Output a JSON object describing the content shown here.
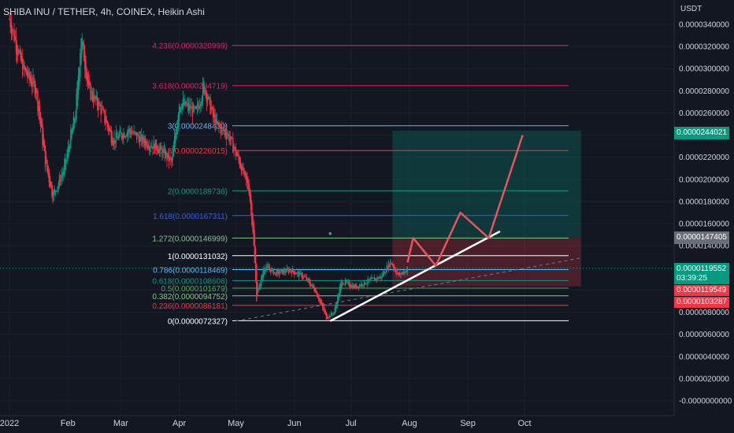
{
  "header": {
    "title": "SHIBA INU / TETHER, 4h, COINEX, Heikin Ashi"
  },
  "price_axis": {
    "unit": "USDT"
  },
  "price_tags": {
    "target": {
      "value": "0.0000244021",
      "color": "#089981"
    },
    "entry": {
      "value": "0.0000147405",
      "color": "#6b6e76"
    },
    "current": {
      "value": "0.0000119552",
      "countdown": "03:39:25",
      "color": "#089981"
    },
    "stop_1": {
      "value": "0.0000119549",
      "color": "#f23645"
    },
    "stop_2": {
      "value": "0.0000103287",
      "color": "#f23645"
    }
  },
  "chart_data": {
    "type": "candlestick",
    "symbol": "SHIBA INU / TETHER",
    "interval": "4h",
    "exchange": "COINEX",
    "style": "Heikin Ashi",
    "y_unit": "USDT",
    "ylim": [
      0.0,
      3.5e-05
    ],
    "y_ticks": [
      "0.0000340000",
      "0.0000320000",
      "0.0000300000",
      "0.0000280000",
      "0.0000260000",
      "0.0000240000",
      "0.0000220000",
      "0.0000200000",
      "0.0000180000",
      "0.0000160000",
      "0.0000140000",
      "0.0000120000",
      "0.0000100000",
      "0.0000080000",
      "0.0000060000",
      "0.0000040000",
      "0.0000020000",
      "-0.0000000000"
    ],
    "y_tick_values": [
      3.4e-05,
      3.2e-05,
      3e-05,
      2.8e-05,
      2.6e-05,
      2.4e-05,
      2.2e-05,
      2e-05,
      1.8e-05,
      1.6e-05,
      1.4e-05,
      1.2e-05,
      1e-05,
      8e-06,
      6e-06,
      4e-06,
      2e-06,
      0
    ],
    "x_ticks": [
      "2022",
      "Feb",
      "Mar",
      "Apr",
      "May",
      "Jun",
      "Jul",
      "Aug",
      "Sep",
      "Oct"
    ],
    "price_path": [
      [
        "2022-01-01",
        3.45e-05
      ],
      [
        "2022-01-08",
        3e-05
      ],
      [
        "2022-01-15",
        2.82e-05
      ],
      [
        "2022-01-20",
        2.15e-05
      ],
      [
        "2022-01-24",
        1.85e-05
      ],
      [
        "2022-01-30",
        2.1e-05
      ],
      [
        "2022-02-05",
        2.6e-05
      ],
      [
        "2022-02-08",
        3.3e-05
      ],
      [
        "2022-02-12",
        2.8e-05
      ],
      [
        "2022-02-18",
        2.65e-05
      ],
      [
        "2022-02-25",
        2.35e-05
      ],
      [
        "2022-03-05",
        2.45e-05
      ],
      [
        "2022-03-12",
        2.35e-05
      ],
      [
        "2022-03-20",
        2.3e-05
      ],
      [
        "2022-03-28",
        2.15e-05
      ],
      [
        "2022-04-01",
        2.7e-05
      ],
      [
        "2022-04-10",
        2.6e-05
      ],
      [
        "2022-04-14",
        2.85e-05
      ],
      [
        "2022-04-20",
        2.5e-05
      ],
      [
        "2022-04-27",
        2.4e-05
      ],
      [
        "2022-05-03",
        2.15e-05
      ],
      [
        "2022-05-08",
        1.9e-05
      ],
      [
        "2022-05-10",
        1.55e-05
      ],
      [
        "2022-05-12",
        9.2e-06
      ],
      [
        "2022-05-16",
        1.22e-05
      ],
      [
        "2022-05-22",
        1.15e-05
      ],
      [
        "2022-05-30",
        1.18e-05
      ],
      [
        "2022-06-06",
        1.12e-05
      ],
      [
        "2022-06-12",
        1e-05
      ],
      [
        "2022-06-18",
        7.5e-06
      ],
      [
        "2022-06-22",
        8e-06
      ],
      [
        "2022-06-26",
        1.08e-05
      ],
      [
        "2022-07-03",
        1.03e-05
      ],
      [
        "2022-07-10",
        1.08e-05
      ],
      [
        "2022-07-17",
        1.12e-05
      ],
      [
        "2022-07-22",
        1.26e-05
      ],
      [
        "2022-07-26",
        1.13e-05
      ],
      [
        "2022-07-31",
        1.19e-05
      ]
    ],
    "fibonacci": {
      "levels": [
        {
          "ratio": "0",
          "price": "0.0000072327",
          "color": "#ffffff"
        },
        {
          "ratio": "0.236",
          "price": "0.0000086181",
          "color": "#f23645"
        },
        {
          "ratio": "0.382",
          "price": "0.0000094752",
          "color": "#81c784"
        },
        {
          "ratio": "0.5",
          "price": "0.0000101679",
          "color": "#4caf50"
        },
        {
          "ratio": "0.618",
          "price": "0.0000108606",
          "color": "#089981"
        },
        {
          "ratio": "0.786",
          "price": "0.0000118469",
          "color": "#64b5f6"
        },
        {
          "ratio": "1",
          "price": "0.0000131032",
          "color": "#ffffff"
        },
        {
          "ratio": "1.272",
          "price": "0.0000146999",
          "color": "#81c784"
        },
        {
          "ratio": "1.618",
          "price": "0.0000167311",
          "color": "#2962ff"
        },
        {
          "ratio": "2",
          "price": "0.0000189736",
          "color": "#089981"
        },
        {
          "ratio": "2.618",
          "price": "0.0000226015",
          "color": "#f23645"
        },
        {
          "ratio": "3",
          "price": "0.0000248430",
          "color": "#64b5f6"
        },
        {
          "ratio": "3.618",
          "price": "0.0000284719",
          "color": "#e91e63"
        },
        {
          "ratio": "4.236",
          "price": "0.0000320999",
          "color": "#e91e63"
        }
      ]
    },
    "position": {
      "entry": 1.47405e-05,
      "target": 2.44021e-05,
      "stop": 1.03287e-05,
      "start": "2022-07-23",
      "end": "2022-10-31"
    },
    "projection": [
      [
        "2022-07-31",
        1.25e-05
      ],
      [
        "2022-08-03",
        1.47e-05
      ],
      [
        "2022-08-15",
        1.22e-05
      ],
      [
        "2022-08-28",
        1.7e-05
      ],
      [
        "2022-09-12",
        1.47e-05
      ],
      [
        "2022-09-30",
        2.4e-05
      ]
    ],
    "support_line": [
      [
        "2022-06-20",
        7.2e-06
      ],
      [
        "2022-09-18",
        1.53e-05
      ]
    ],
    "dashed_trend": [
      [
        "2022-05-01",
        7.2e-06
      ],
      [
        "2022-10-31",
        1.29e-05
      ]
    ],
    "marker_point": [
      "2022-06-20",
      1.51e-05
    ],
    "current_price": 1.19552e-05
  }
}
